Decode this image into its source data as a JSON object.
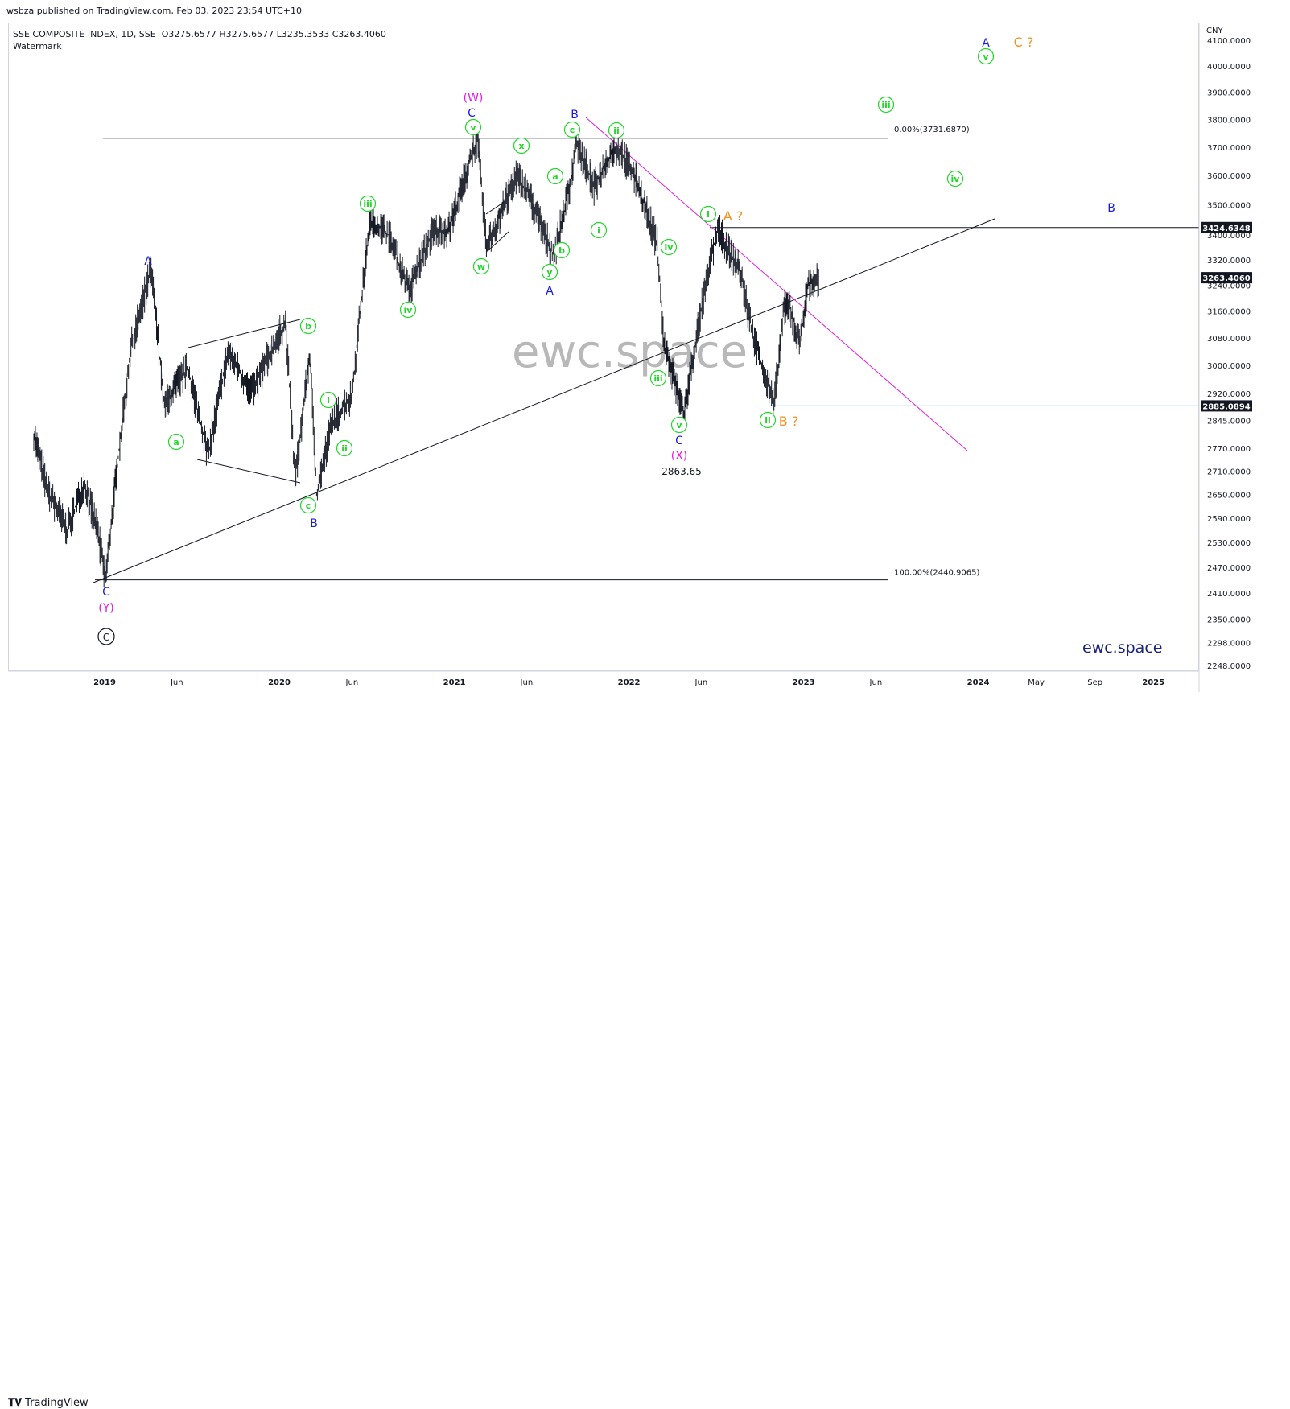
{
  "publisher": "wsbza published on TradingView.com, Feb 03, 2023 23:54 UTC+10",
  "header": {
    "title": "SSE COMPOSITE INDEX, 1D, SSE",
    "ohlc": "O3275.6577  H3275.6577  L3235.3533  C3263.4060",
    "subtitle": "Watermark"
  },
  "watermark": "ewc.space",
  "brand_bottom": "ewc.space",
  "footer_logo": "TradingView",
  "currency": "CNY",
  "colors": {
    "price_series": "#131722",
    "green_labels": "#22d62a",
    "blue_labels": "#1a1adf",
    "magenta": "#e020e0",
    "orange": "#f4911e",
    "cyan_line": "#22aadd"
  },
  "chart_data": {
    "type": "line",
    "title": "SSE COMPOSITE INDEX, 1D, SSE",
    "ylim": [
      2200,
      4160
    ],
    "y_scale": "log",
    "x_range": [
      "2018-08",
      "2025-04"
    ],
    "grid": false,
    "price_ticks": [
      "4100.0000",
      "4000.0000",
      "3900.0000",
      "3800.0000",
      "3700.0000",
      "3600.0000",
      "3500.0000",
      "3400.0000",
      "3320.0000",
      "3240.0000",
      "3160.0000",
      "3080.0000",
      "3000.0000",
      "2920.0000",
      "2845.0000",
      "2770.0000",
      "2710.0000",
      "2650.0000",
      "2590.0000",
      "2530.0000",
      "2470.0000",
      "2410.0000",
      "2350.0000",
      "2298.0000",
      "2248.0000"
    ],
    "time_ticks": [
      "2019",
      "Jun",
      "2020",
      "Jun",
      "2021",
      "Jun",
      "2022",
      "Jun",
      "2023",
      "Jun",
      "2024",
      "May",
      "Sep",
      "2025"
    ],
    "price_labels": [
      {
        "text": "3424.6348",
        "value": 3424.6348
      },
      {
        "text": "3263.4060",
        "value": 3263.406
      },
      {
        "text": "2885.0894",
        "value": 2885.0894
      }
    ],
    "series": [
      {
        "x": [
          "2018-08-06",
          "2018-09-03",
          "2018-10-15",
          "2018-11-19",
          "2018-12-17",
          "2019-01-03",
          "2019-02-25",
          "2019-04-08",
          "2019-05-06",
          "2019-06-03",
          "2019-06-24",
          "2019-08-05",
          "2019-09-16",
          "2019-11-04",
          "2019-12-30",
          "2020-01-14",
          "2020-02-03",
          "2020-03-05",
          "2020-03-19",
          "2020-04-20",
          "2020-06-01",
          "2020-07-09",
          "2020-08-17",
          "2020-09-28",
          "2020-11-16",
          "2020-12-21",
          "2021-02-18",
          "2021-03-09",
          "2021-04-06",
          "2021-05-10",
          "2021-06-04",
          "2021-07-28",
          "2021-08-30",
          "2021-09-13",
          "2021-10-20",
          "2021-11-29",
          "2021-12-13",
          "2022-01-17",
          "2022-03-01",
          "2022-03-15",
          "2022-04-26",
          "2022-05-30",
          "2022-07-05",
          "2022-08-22",
          "2022-09-15",
          "2022-10-31",
          "2022-11-21",
          "2022-12-02",
          "2022-12-23",
          "2023-01-10",
          "2023-02-03"
        ],
        "values": [
          2810,
          2660,
          2560,
          2680,
          2560,
          2441,
          3050,
          3288,
          2880,
          2950,
          2990,
          2750,
          3040,
          2920,
          3085,
          3120,
          2685,
          3030,
          2650,
          2840,
          2915,
          3450,
          3400,
          3220,
          3410,
          3420,
          3731,
          3360,
          3460,
          3600,
          3540,
          3330,
          3560,
          3720,
          3560,
          3690,
          3690,
          3580,
          3370,
          3060,
          2864,
          3150,
          3420,
          3280,
          3100,
          2885,
          3170,
          3180,
          3060,
          3240,
          3263
        ]
      }
    ],
    "levels": [
      {
        "text": "0.00%(3731.6870)",
        "value": 3731.687
      },
      {
        "text": "100.00%(2440.9065)",
        "value": 2440.9065
      },
      {
        "text": "",
        "value": 3424.6348
      },
      {
        "text": "",
        "value": 2885.0894
      }
    ],
    "annotations": {
      "price_note": "2863.65",
      "green": [
        "a",
        "b",
        "i",
        "ii",
        "iii",
        "iv",
        "v",
        "w",
        "x",
        "y",
        "c",
        "a",
        "b",
        "c",
        "ii",
        "i",
        "iv",
        "iii",
        "v",
        "i",
        "ii",
        "iii",
        "iv",
        "v"
      ],
      "blue": [
        "A",
        "B",
        "C",
        "C",
        "B",
        "A",
        "C",
        "A",
        "B"
      ],
      "magenta": [
        "(W)",
        "(X)",
        "(Y)"
      ],
      "orange": [
        "A ?",
        "B ?",
        "C ?"
      ],
      "black_circled": "C"
    }
  }
}
